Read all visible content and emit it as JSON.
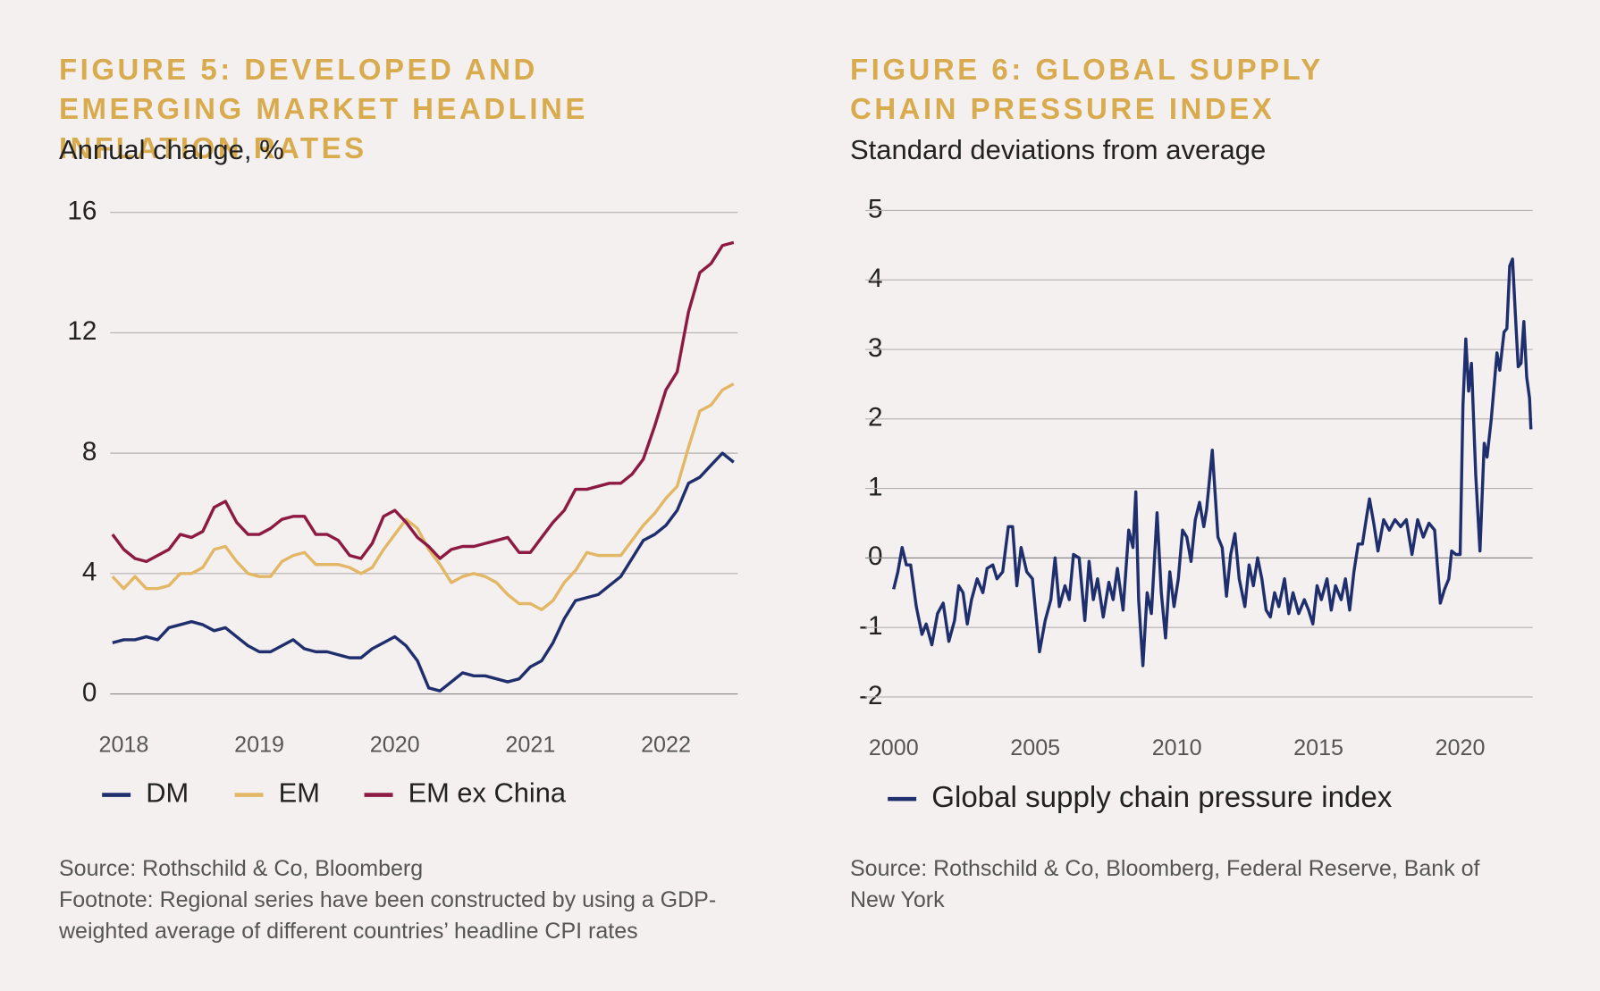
{
  "chart_data": [
    {
      "type": "line",
      "title": "FIGURE 5: DEVELOPED AND EMERGING MARKET HEADLINE INFLATION RATES",
      "subtitle": "Annual change, %",
      "source": "Source: Rothschild & Co, Bloomberg",
      "footnote": "Footnote: Regional series have been constructed by using a GDP-weighted average of different countries’ headline CPI rates",
      "x": [
        2017.917,
        2018,
        2018.083,
        2018.167,
        2018.25,
        2018.333,
        2018.417,
        2018.5,
        2018.583,
        2018.667,
        2018.75,
        2018.833,
        2018.917,
        2019,
        2019.083,
        2019.167,
        2019.25,
        2019.333,
        2019.417,
        2019.5,
        2019.583,
        2019.667,
        2019.75,
        2019.833,
        2019.917,
        2020,
        2020.083,
        2020.167,
        2020.25,
        2020.333,
        2020.417,
        2020.5,
        2020.583,
        2020.667,
        2020.75,
        2020.833,
        2020.917,
        2021,
        2021.083,
        2021.167,
        2021.25,
        2021.333,
        2021.417,
        2021.5,
        2021.583,
        2021.667,
        2021.75,
        2021.833,
        2021.917,
        2022,
        2022.083,
        2022.167,
        2022.25,
        2022.333,
        2022.417,
        2022.5
      ],
      "series": [
        {
          "name": "DM",
          "color": "#1f2f6e",
          "values": [
            1.7,
            1.8,
            1.8,
            1.9,
            1.8,
            2.2,
            2.3,
            2.4,
            2.3,
            2.1,
            2.2,
            1.9,
            1.6,
            1.4,
            1.4,
            1.6,
            1.8,
            1.5,
            1.4,
            1.4,
            1.3,
            1.2,
            1.2,
            1.5,
            1.7,
            1.9,
            1.6,
            1.1,
            0.2,
            0.1,
            0.4,
            0.7,
            0.6,
            0.6,
            0.5,
            0.4,
            0.5,
            0.9,
            1.1,
            1.7,
            2.5,
            3.1,
            3.2,
            3.3,
            3.6,
            3.9,
            4.5,
            5.1,
            5.3,
            5.6,
            6.1,
            7.0,
            7.2,
            7.6,
            8.0,
            7.7
          ]
        },
        {
          "name": "EM",
          "color": "#e2b866",
          "values": [
            3.9,
            3.5,
            3.9,
            3.5,
            3.5,
            3.6,
            4.0,
            4.0,
            4.2,
            4.8,
            4.9,
            4.4,
            4.0,
            3.9,
            3.9,
            4.4,
            4.6,
            4.7,
            4.3,
            4.3,
            4.3,
            4.2,
            4.0,
            4.2,
            4.8,
            5.3,
            5.8,
            5.5,
            4.8,
            4.3,
            3.7,
            3.9,
            4.0,
            3.9,
            3.7,
            3.3,
            3.0,
            3.0,
            2.8,
            3.1,
            3.7,
            4.1,
            4.7,
            4.6,
            4.6,
            4.6,
            5.1,
            5.6,
            6.0,
            6.5,
            6.9,
            8.2,
            9.4,
            9.6,
            10.1,
            10.3
          ]
        },
        {
          "name": "EM ex China",
          "color": "#8c1a42",
          "values": [
            5.3,
            4.8,
            4.5,
            4.4,
            4.6,
            4.8,
            5.3,
            5.2,
            5.4,
            6.2,
            6.4,
            5.7,
            5.3,
            5.3,
            5.5,
            5.8,
            5.9,
            5.9,
            5.3,
            5.3,
            5.1,
            4.6,
            4.5,
            5.0,
            5.9,
            6.1,
            5.7,
            5.2,
            4.9,
            4.5,
            4.8,
            4.9,
            4.9,
            5.0,
            5.1,
            5.2,
            4.7,
            4.7,
            5.2,
            5.7,
            6.1,
            6.8,
            6.8,
            6.9,
            7.0,
            7.0,
            7.3,
            7.8,
            8.9,
            10.1,
            10.7,
            12.7,
            14.0,
            14.3,
            14.9,
            15.0
          ]
        }
      ],
      "xlim": [
        2017.9,
        2022.53
      ],
      "xticks": [
        2018,
        2019,
        2020,
        2021,
        2022
      ],
      "ylim": [
        0,
        16
      ],
      "yticks": [
        0,
        4,
        8,
        12,
        16
      ],
      "grid": true
    },
    {
      "type": "line",
      "title": "FIGURE 6: GLOBAL SUPPLY CHAIN PRESSURE INDEX",
      "subtitle": "Standard deviations from average",
      "source": "Source: Rothschild & Co, Bloomberg, Federal Reserve, Bank of New York",
      "x": [
        2000.0,
        2000.15,
        2000.3,
        2000.45,
        2000.6,
        2000.8,
        2001.0,
        2001.15,
        2001.35,
        2001.55,
        2001.75,
        2001.95,
        2002.15,
        2002.3,
        2002.45,
        2002.6,
        2002.75,
        2002.95,
        2003.15,
        2003.3,
        2003.5,
        2003.65,
        2003.85,
        2004.05,
        2004.2,
        2004.35,
        2004.5,
        2004.7,
        2004.9,
        2005.15,
        2005.35,
        2005.55,
        2005.7,
        2005.85,
        2006.05,
        2006.2,
        2006.35,
        2006.55,
        2006.75,
        2006.9,
        2007.05,
        2007.2,
        2007.4,
        2007.6,
        2007.75,
        2007.9,
        2008.1,
        2008.3,
        2008.45,
        2008.55,
        2008.65,
        2008.8,
        2008.95,
        2009.1,
        2009.3,
        2009.45,
        2009.6,
        2009.75,
        2009.9,
        2010.05,
        2010.2,
        2010.35,
        2010.5,
        2010.65,
        2010.8,
        2010.95,
        2011.05,
        2011.25,
        2011.45,
        2011.6,
        2011.75,
        2011.9,
        2012.05,
        2012.2,
        2012.4,
        2012.55,
        2012.7,
        2012.85,
        2013.0,
        2013.15,
        2013.3,
        2013.45,
        2013.6,
        2013.8,
        2013.95,
        2014.1,
        2014.3,
        2014.5,
        2014.65,
        2014.8,
        2014.95,
        2015.1,
        2015.3,
        2015.45,
        2015.6,
        2015.8,
        2015.95,
        2016.1,
        2016.25,
        2016.4,
        2016.55,
        2016.7,
        2016.8,
        2016.95,
        2017.1,
        2017.3,
        2017.5,
        2017.7,
        2017.9,
        2018.1,
        2018.3,
        2018.5,
        2018.7,
        2018.9,
        2019.1,
        2019.3,
        2019.45,
        2019.6,
        2019.7,
        2019.85,
        2020.0,
        2020.1,
        2020.2,
        2020.3,
        2020.4,
        2020.55,
        2020.7,
        2020.85,
        2020.95,
        2021.1,
        2021.3,
        2021.4,
        2021.55,
        2021.65,
        2021.75,
        2021.85,
        2021.95,
        2022.05,
        2022.15,
        2022.25,
        2022.35,
        2022.45,
        2022.5
      ],
      "series": [
        {
          "name": "Global supply chain pressure index",
          "color": "#1f2f6e",
          "values": [
            -0.45,
            -0.2,
            0.15,
            -0.1,
            -0.1,
            -0.7,
            -1.1,
            -0.95,
            -1.25,
            -0.8,
            -0.65,
            -1.2,
            -0.9,
            -0.4,
            -0.5,
            -0.95,
            -0.6,
            -0.3,
            -0.5,
            -0.15,
            -0.1,
            -0.3,
            -0.2,
            0.45,
            0.45,
            -0.4,
            0.15,
            -0.2,
            -0.3,
            -1.35,
            -0.9,
            -0.6,
            0.0,
            -0.7,
            -0.4,
            -0.6,
            0.05,
            0.0,
            -0.9,
            -0.05,
            -0.6,
            -0.3,
            -0.85,
            -0.35,
            -0.6,
            -0.15,
            -0.75,
            0.4,
            0.15,
            0.95,
            -0.6,
            -1.55,
            -0.5,
            -0.8,
            0.65,
            -0.5,
            -1.15,
            -0.2,
            -0.7,
            -0.3,
            0.4,
            0.3,
            -0.05,
            0.55,
            0.8,
            0.45,
            0.7,
            1.55,
            0.3,
            0.15,
            -0.55,
            0.05,
            0.35,
            -0.3,
            -0.7,
            -0.1,
            -0.4,
            0.0,
            -0.3,
            -0.75,
            -0.85,
            -0.5,
            -0.7,
            -0.3,
            -0.8,
            -0.5,
            -0.8,
            -0.6,
            -0.75,
            -0.95,
            -0.4,
            -0.6,
            -0.3,
            -0.75,
            -0.4,
            -0.6,
            -0.3,
            -0.75,
            -0.2,
            0.2,
            0.2,
            0.6,
            0.85,
            0.5,
            0.1,
            0.55,
            0.4,
            0.55,
            0.45,
            0.55,
            0.05,
            0.55,
            0.3,
            0.5,
            0.4,
            -0.65,
            -0.45,
            -0.3,
            0.1,
            0.05,
            0.05,
            2.2,
            3.15,
            2.4,
            2.8,
            1.2,
            0.1,
            1.65,
            1.45,
            2.0,
            2.95,
            2.7,
            3.25,
            3.3,
            4.2,
            4.3,
            3.5,
            2.75,
            2.8,
            3.4,
            2.6,
            2.3,
            1.85
          ]
        }
      ],
      "xlim": [
        1999,
        2022.56
      ],
      "xticks": [
        2000,
        2005,
        2010,
        2015,
        2020
      ],
      "ylim": [
        -2,
        5
      ],
      "yticks": [
        -2,
        -1,
        0,
        1,
        2,
        3,
        4,
        5
      ],
      "grid": true
    }
  ]
}
